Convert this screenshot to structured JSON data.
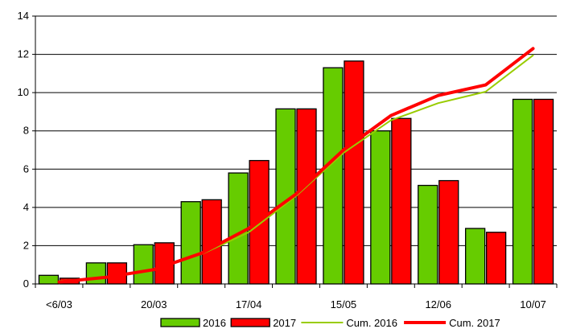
{
  "chart_data": {
    "type": "bar",
    "categories": [
      "<6/03",
      "",
      "20/03",
      "",
      "17/04",
      "",
      "15/05",
      "",
      "12/06",
      "",
      "10/07"
    ],
    "series": [
      {
        "name": "2016",
        "kind": "bar",
        "color": "#66cc00",
        "values": [
          0.45,
          1.1,
          2.05,
          4.3,
          5.8,
          9.15,
          11.3,
          8.0,
          5.15,
          2.9,
          9.65
        ]
      },
      {
        "name": "2017",
        "kind": "bar",
        "color": "#ff0000",
        "values": [
          0.3,
          1.1,
          2.15,
          4.4,
          6.45,
          9.15,
          11.65,
          8.65,
          5.4,
          2.7,
          9.65
        ]
      },
      {
        "name": "Cum. 2016",
        "kind": "line",
        "color": "#99cc00",
        "values": [
          0.15,
          0.35,
          0.75,
          1.55,
          2.7,
          4.6,
          6.85,
          8.55,
          9.45,
          10.05,
          11.95
        ]
      },
      {
        "name": "Cum. 2017",
        "kind": "line",
        "color": "#ff0000",
        "values": [
          0.1,
          0.35,
          0.75,
          1.6,
          2.9,
          4.7,
          7.0,
          8.8,
          9.85,
          10.4,
          12.3
        ]
      }
    ],
    "yticks": [
      "0",
      "2",
      "4",
      "6",
      "8",
      "10",
      "12",
      "14"
    ],
    "ylim": [
      0,
      14
    ],
    "grid": true,
    "legend": "bottom-right"
  }
}
